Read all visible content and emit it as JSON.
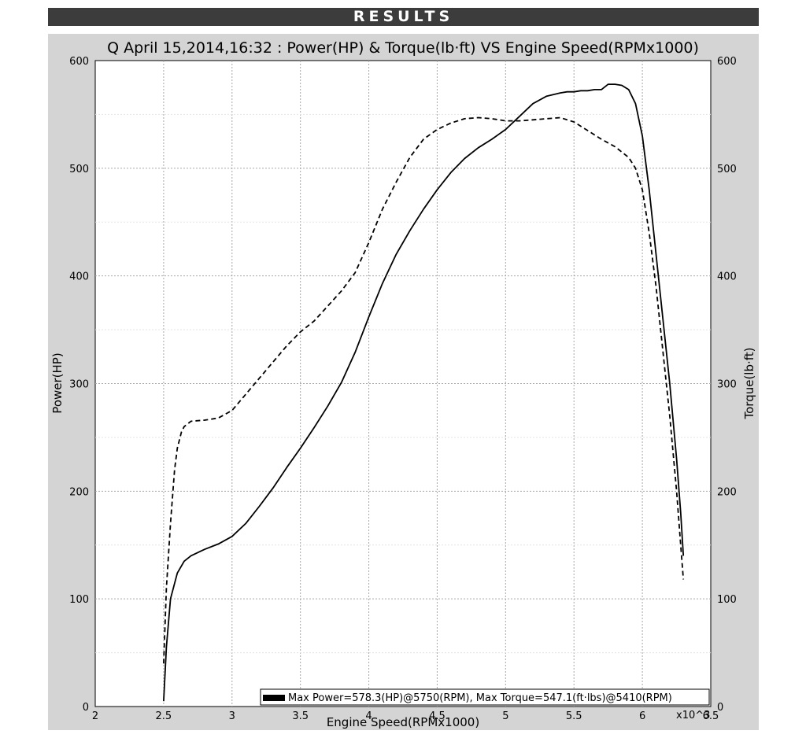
{
  "banner": {
    "title": "RESULTS"
  },
  "chart_data": {
    "type": "line",
    "title": "Q April 15,2014,16:32  : Power(HP) & Torque(lb·ft) VS Engine Speed(RPMx1000)",
    "xlabel": "Engine Speed(RPMx1000)",
    "ylabel_left": "Power(HP)",
    "ylabel_right": "Torque(lb·ft)",
    "x_multiplier_label": "x10^3",
    "xlim": [
      2,
      6.5
    ],
    "ylim": [
      0,
      600
    ],
    "x_ticks": [
      "2",
      "2.5",
      "3",
      "3.5",
      "4",
      "4.5",
      "5",
      "5.5",
      "6",
      "6.5"
    ],
    "x_tick_values": [
      2,
      2.5,
      3,
      3.5,
      4,
      4.5,
      5,
      5.5,
      6,
      6.5
    ],
    "y_ticks": [
      "0",
      "100",
      "200",
      "300",
      "400",
      "500",
      "600"
    ],
    "y_tick_values": [
      0,
      100,
      200,
      300,
      400,
      500,
      600
    ],
    "grid": true,
    "legend_text": "Max Power=578.3(HP)@5750(RPM), Max Torque=547.1(ft·lbs)@5410(RPM)",
    "legend_position": "bottom-right",
    "series": [
      {
        "key": "power",
        "style": "solid",
        "color": "#000000",
        "x": [
          2.5,
          2.52,
          2.55,
          2.6,
          2.65,
          2.7,
          2.75,
          2.8,
          2.9,
          3.0,
          3.1,
          3.2,
          3.3,
          3.4,
          3.5,
          3.6,
          3.7,
          3.8,
          3.9,
          4.0,
          4.1,
          4.2,
          4.3,
          4.4,
          4.5,
          4.6,
          4.7,
          4.8,
          4.9,
          5.0,
          5.1,
          5.2,
          5.3,
          5.4,
          5.45,
          5.5,
          5.55,
          5.6,
          5.65,
          5.7,
          5.75,
          5.8,
          5.85,
          5.9,
          5.95,
          6.0,
          6.05,
          6.1,
          6.15,
          6.2,
          6.25,
          6.28,
          6.3
        ],
        "values": [
          5,
          55,
          100,
          124,
          135,
          140,
          143,
          146,
          151,
          158,
          170,
          186,
          203,
          222,
          240,
          259,
          279,
          301,
          329,
          362,
          393,
          420,
          442,
          462,
          480,
          496,
          509,
          519,
          527,
          536,
          548,
          560,
          567,
          570,
          571,
          571,
          572,
          572,
          573,
          573,
          578,
          578,
          577,
          573,
          560,
          530,
          480,
          420,
          360,
          300,
          230,
          180,
          140
        ]
      },
      {
        "key": "torque",
        "style": "dashed",
        "color": "#000000",
        "x": [
          2.5,
          2.52,
          2.55,
          2.58,
          2.6,
          2.63,
          2.65,
          2.7,
          2.8,
          2.9,
          3.0,
          3.1,
          3.2,
          3.3,
          3.4,
          3.5,
          3.6,
          3.7,
          3.8,
          3.9,
          4.0,
          4.1,
          4.2,
          4.3,
          4.4,
          4.5,
          4.6,
          4.7,
          4.8,
          4.9,
          5.0,
          5.1,
          5.2,
          5.3,
          5.4,
          5.5,
          5.6,
          5.7,
          5.8,
          5.9,
          5.95,
          6.0,
          6.05,
          6.1,
          6.15,
          6.2,
          6.25,
          6.28,
          6.3
        ],
        "values": [
          40,
          110,
          170,
          220,
          240,
          255,
          260,
          265,
          266,
          268,
          275,
          290,
          305,
          320,
          335,
          348,
          358,
          372,
          386,
          403,
          431,
          462,
          487,
          510,
          527,
          536,
          542,
          546,
          547,
          546,
          544,
          544,
          545,
          546,
          547,
          543,
          535,
          527,
          520,
          510,
          500,
          480,
          440,
          390,
          330,
          270,
          200,
          150,
          118
        ]
      }
    ]
  }
}
